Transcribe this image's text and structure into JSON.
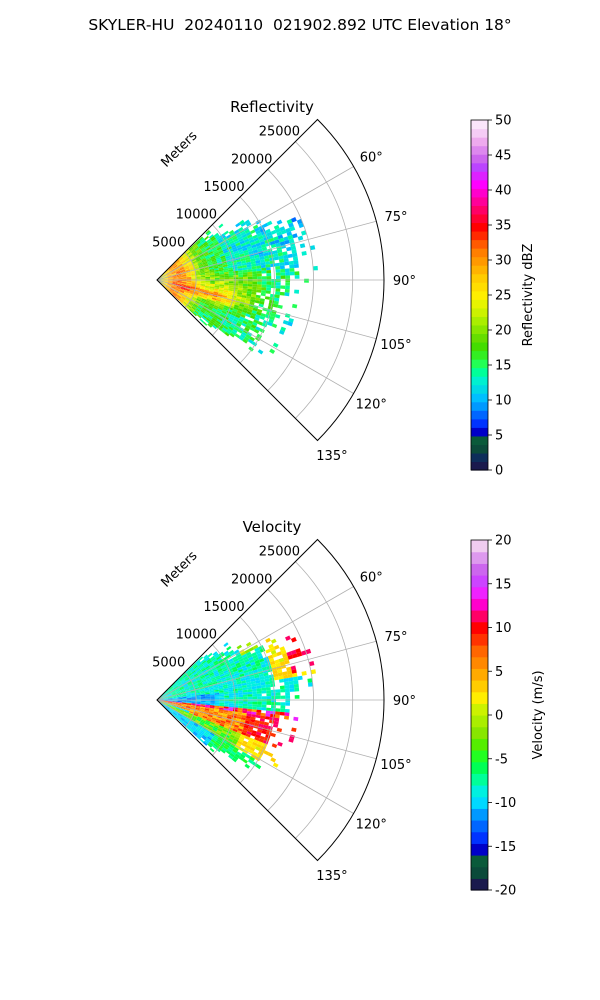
{
  "figure": {
    "title": "SKYLER-HU  20240110  021902.892 UTC Elevation 18°"
  },
  "chart_data": [
    {
      "type": "heatmap",
      "subtype": "polar-sector (radar PPI)",
      "title": "Reflectivity",
      "range_label": "Meters",
      "range_ticks": [
        5000,
        10000,
        15000,
        20000,
        25000
      ],
      "range_lim": [
        0,
        29000
      ],
      "azimuth_ticks": [
        "60°",
        "75°",
        "90°",
        "105°",
        "120°",
        "135°"
      ],
      "azimuth_lim_deg": [
        45,
        135
      ],
      "grid": true,
      "colorbar": {
        "label": "Reflectivity dBZ",
        "min": 0,
        "max": 50,
        "ticks": [
          0,
          5,
          10,
          15,
          20,
          25,
          30,
          35,
          40,
          45,
          50
        ],
        "colors": [
          "#1a1a4d",
          "#0d2d5a",
          "#0b4a3a",
          "#0a5a3a",
          "#0000c8",
          "#0033ff",
          "#0066ff",
          "#0099ff",
          "#00bfff",
          "#00d9e6",
          "#00f0d0",
          "#00ff99",
          "#22ff55",
          "#33ee22",
          "#44dd00",
          "#66dd00",
          "#88e600",
          "#aaee00",
          "#ccf200",
          "#e6f500",
          "#ffee00",
          "#ffdd00",
          "#ffcc00",
          "#ffb300",
          "#ff9900",
          "#ff7f00",
          "#ff5a00",
          "#ff2a00",
          "#ff0000",
          "#ff0033",
          "#ff0066",
          "#ff0099",
          "#ff00cc",
          "#ff00ff",
          "#dd22ff",
          "#bb44ff",
          "#cc66ee",
          "#dd88ee",
          "#eeaaee",
          "#f5ccf5",
          "#fbe6fb"
        ]
      },
      "field_summary": {
        "dominant_range_m": [
          0,
          19000
        ],
        "dominant_values_dbz": [
          15,
          25
        ],
        "core_values_dbz": [
          30,
          36
        ],
        "core_range_m": [
          0,
          8000
        ]
      }
    },
    {
      "type": "heatmap",
      "subtype": "polar-sector (radar PPI)",
      "title": "Velocity",
      "range_label": "Meters",
      "range_ticks": [
        5000,
        10000,
        15000,
        20000,
        25000
      ],
      "range_lim": [
        0,
        29000
      ],
      "azimuth_ticks": [
        "60°",
        "75°",
        "90°",
        "105°",
        "120°",
        "135°"
      ],
      "azimuth_lim_deg": [
        45,
        135
      ],
      "grid": true,
      "colorbar": {
        "label": "Velocity (m/s)",
        "min": -20,
        "max": 20,
        "ticks": [
          -20,
          -15,
          -10,
          -5,
          0,
          5,
          10,
          15,
          20
        ],
        "colors": [
          "#1a1a4d",
          "#0b4a3a",
          "#0a5a3a",
          "#0000c8",
          "#0033ff",
          "#0066ff",
          "#0099ff",
          "#00d9ff",
          "#00f0e0",
          "#00ff99",
          "#00ff55",
          "#22ff22",
          "#55ee00",
          "#88e600",
          "#aaee00",
          "#ccf200",
          "#ffee00",
          "#ffcc00",
          "#ffaa00",
          "#ff8800",
          "#ff6600",
          "#ff3300",
          "#ff0000",
          "#ff0066",
          "#ff00cc",
          "#ee22ff",
          "#cc44ff",
          "#cc66ee",
          "#dd99ee",
          "#f0ccf0"
        ]
      },
      "field_summary": {
        "north_sector_values_ms": [
          -10,
          -3
        ],
        "south_band_values_ms": [
          5,
          15
        ],
        "far_south_values_ms": [
          -8,
          2
        ]
      }
    }
  ]
}
